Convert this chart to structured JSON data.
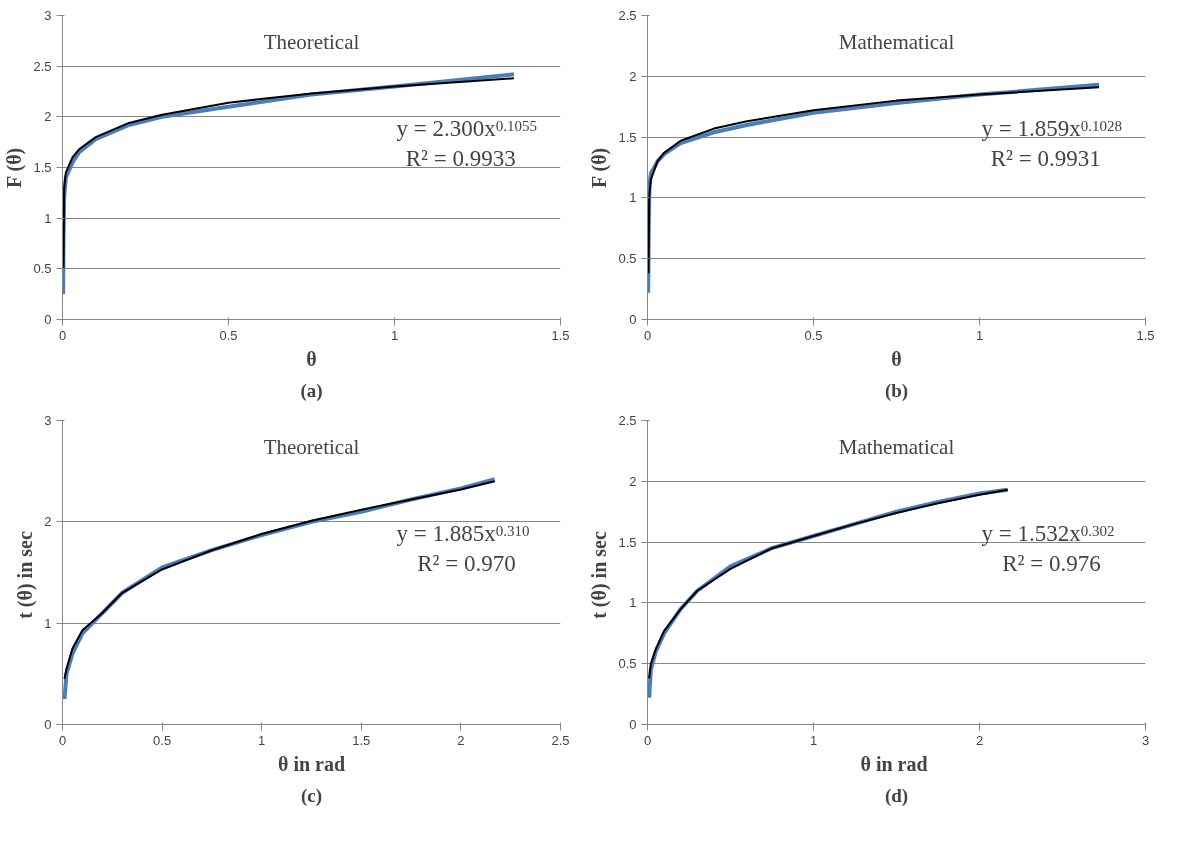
{
  "chart_data": [
    {
      "type": "line",
      "title": "Theoretical",
      "xlabel": "θ",
      "ylabel": "F (θ)",
      "xlim": [
        0,
        1.5
      ],
      "ylim": [
        0,
        3
      ],
      "xticks": [
        0,
        0.5,
        1,
        1.5
      ],
      "yticks": [
        0,
        0.5,
        1,
        1.5,
        2,
        2.5,
        3
      ],
      "grid": "y",
      "annotations": [
        "y = 2.300x$^{0.1055}$",
        "R² = 0.9933",
        "(a)"
      ],
      "series": [
        {
          "color": "#4a7ebb",
          "x": [
            0.002,
            0.003,
            0.005,
            0.01,
            0.03,
            0.05,
            0.1,
            0.2,
            0.3,
            0.5,
            0.75,
            1.0,
            1.36
          ],
          "values": [
            0.25,
            0.8,
            1.2,
            1.4,
            1.55,
            1.65,
            1.78,
            1.92,
            2.0,
            2.1,
            2.22,
            2.3,
            2.42
          ]
        },
        {
          "color": "#000000",
          "x": [
            0.003,
            0.005,
            0.01,
            0.03,
            0.05,
            0.1,
            0.2,
            0.3,
            0.5,
            0.75,
            1.0,
            1.36
          ],
          "values": [
            0.5,
            1.3,
            1.45,
            1.6,
            1.68,
            1.8,
            1.94,
            2.02,
            2.14,
            2.23,
            2.3,
            2.38
          ]
        }
      ]
    },
    {
      "type": "line",
      "title": "Mathematical",
      "xlabel": "θ",
      "ylabel": "F (θ)",
      "xlim": [
        0,
        1.5
      ],
      "ylim": [
        0,
        2.5
      ],
      "xticks": [
        0,
        0.5,
        1,
        1.5
      ],
      "yticks": [
        0,
        0.5,
        1,
        1.5,
        2,
        2.5
      ],
      "grid": "y",
      "annotations": [
        "y = 1.859x$^{0.1028}$",
        "R² = 0.9931",
        "(b)"
      ],
      "series": [
        {
          "color": "#4a7ebb",
          "x": [
            0.002,
            0.004,
            0.006,
            0.01,
            0.03,
            0.05,
            0.1,
            0.2,
            0.3,
            0.5,
            0.75,
            1.0,
            1.36
          ],
          "values": [
            0.22,
            0.8,
            1.1,
            1.2,
            1.3,
            1.36,
            1.45,
            1.54,
            1.6,
            1.7,
            1.78,
            1.85,
            1.93
          ]
        },
        {
          "color": "#000000",
          "x": [
            0.003,
            0.005,
            0.01,
            0.03,
            0.05,
            0.1,
            0.2,
            0.3,
            0.5,
            0.75,
            1.0,
            1.36
          ],
          "values": [
            0.38,
            1.0,
            1.15,
            1.3,
            1.37,
            1.47,
            1.57,
            1.63,
            1.72,
            1.8,
            1.85,
            1.91
          ]
        }
      ]
    },
    {
      "type": "line",
      "title": "Theoretical",
      "xlabel": "θ in rad",
      "ylabel": "t (θ)  in sec",
      "xlim": [
        0,
        2.5
      ],
      "ylim": [
        0,
        3
      ],
      "xticks": [
        0,
        0.5,
        1,
        1.5,
        2,
        2.5
      ],
      "yticks": [
        0,
        1,
        2,
        3
      ],
      "grid": "y",
      "annotations": [
        "y = 1.885x$^{0.310}$",
        "R² = 0.970",
        "(c)"
      ],
      "series": [
        {
          "color": "#4a7ebb",
          "x": [
            0.01,
            0.02,
            0.05,
            0.1,
            0.2,
            0.3,
            0.5,
            0.75,
            1.0,
            1.25,
            1.5,
            1.75,
            2.0,
            2.17
          ],
          "values": [
            0.25,
            0.5,
            0.7,
            0.9,
            1.1,
            1.3,
            1.55,
            1.72,
            1.87,
            2.0,
            2.1,
            2.22,
            2.33,
            2.42
          ]
        },
        {
          "color": "#000000",
          "x": [
            0.01,
            0.02,
            0.05,
            0.1,
            0.2,
            0.3,
            0.5,
            0.75,
            1.0,
            1.25,
            1.5,
            1.75,
            2.0,
            2.17
          ],
          "values": [
            0.45,
            0.55,
            0.75,
            0.93,
            1.1,
            1.3,
            1.53,
            1.72,
            1.88,
            2.01,
            2.12,
            2.22,
            2.32,
            2.4
          ]
        }
      ]
    },
    {
      "type": "line",
      "title": "Mathematical",
      "xlabel": "θ  in rad",
      "ylabel": "t (θ)  in sec",
      "xlim": [
        0,
        3
      ],
      "ylim": [
        0,
        2.5
      ],
      "xticks": [
        0,
        1,
        2,
        3
      ],
      "yticks": [
        0,
        0.5,
        1,
        1.5,
        2,
        2.5
      ],
      "grid": "y",
      "annotations": [
        "y = 1.532x$^{0.302}$",
        "R² = 0.976",
        "(d)"
      ],
      "series": [
        {
          "color": "#4a7ebb",
          "x": [
            0.01,
            0.02,
            0.05,
            0.1,
            0.2,
            0.3,
            0.5,
            0.75,
            1.0,
            1.25,
            1.5,
            1.75,
            2.0,
            2.17
          ],
          "values": [
            0.22,
            0.45,
            0.6,
            0.75,
            0.95,
            1.1,
            1.3,
            1.45,
            1.55,
            1.65,
            1.75,
            1.83,
            1.9,
            1.93
          ]
        },
        {
          "color": "#000000",
          "x": [
            0.01,
            0.02,
            0.05,
            0.1,
            0.2,
            0.3,
            0.5,
            0.75,
            1.0,
            1.25,
            1.5,
            1.75,
            2.0,
            2.17
          ],
          "values": [
            0.38,
            0.5,
            0.62,
            0.77,
            0.95,
            1.1,
            1.28,
            1.45,
            1.55,
            1.65,
            1.74,
            1.82,
            1.89,
            1.93
          ]
        }
      ]
    }
  ]
}
